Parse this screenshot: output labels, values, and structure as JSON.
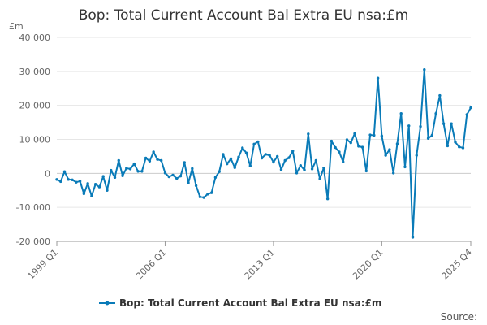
{
  "chart_data": {
    "type": "line",
    "title": "Bop: Total Current Account Bal Extra EU nsa:£m",
    "y_unit": "£m",
    "ylim": [
      -20000,
      40000
    ],
    "y_ticks": [
      40000,
      30000,
      20000,
      10000,
      0,
      -10000,
      -20000
    ],
    "y_tick_labels": [
      "40 000",
      "30 000",
      "20 000",
      "10 000",
      "0",
      "-10 000",
      "-20 000"
    ],
    "x_ticks": [
      "1999 Q1",
      "2006 Q1",
      "2013 Q1",
      "2020 Q1",
      "2025 Q4"
    ],
    "x_range": [
      "1999 Q1",
      "2025 Q4"
    ],
    "grid": "horizontal",
    "legend_position": "bottom",
    "source_label": "Source:",
    "series": [
      {
        "name": "Bop: Total Current Account Bal Extra EU nsa:£m",
        "color": "#0a7bb8",
        "start": "1999 Q1",
        "values": [
          -1800,
          -2400,
          500,
          -1800,
          -1900,
          -2600,
          -2300,
          -6000,
          -3000,
          -6700,
          -3200,
          -4000,
          -900,
          -5000,
          900,
          -1200,
          3800,
          -700,
          1500,
          1300,
          2800,
          600,
          600,
          4500,
          3600,
          6300,
          4100,
          3800,
          100,
          -1000,
          -500,
          -1500,
          -800,
          3200,
          -2800,
          1400,
          -3600,
          -6900,
          -7100,
          -6100,
          -5700,
          -1200,
          500,
          5600,
          2800,
          4300,
          1700,
          4800,
          7500,
          6000,
          2200,
          8600,
          9300,
          4500,
          5600,
          5300,
          3300,
          5000,
          1100,
          3800,
          4600,
          6600,
          100,
          2300,
          1000,
          11600,
          1300,
          3800,
          -1600,
          1600,
          -7500,
          9500,
          7600,
          6300,
          3400,
          9900,
          9000,
          11700,
          8000,
          7700,
          700,
          11300,
          11200,
          28000,
          11000,
          5300,
          7000,
          100,
          8700,
          17600,
          1900,
          14000,
          -18800,
          5300,
          13800,
          30500,
          10300,
          11200,
          17600,
          22900,
          14600,
          8100,
          14600,
          9200,
          7800,
          7500,
          17300,
          19300
        ]
      }
    ]
  }
}
